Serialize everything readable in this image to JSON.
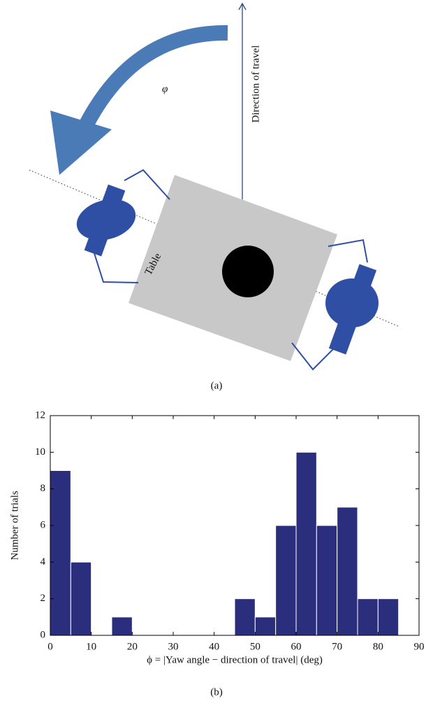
{
  "diagram": {
    "angle_label": "φ",
    "direction_label": "Direction of travel",
    "table_label": "Table",
    "caption": "(a)"
  },
  "chart_data": {
    "type": "histogram",
    "caption": "(b)",
    "x_label": "ϕ = |Yaw angle − direction of travel| (deg)",
    "y_label": "Number of trials",
    "bins": [
      0,
      5,
      10,
      15,
      20,
      25,
      30,
      35,
      40,
      45,
      50,
      55,
      60,
      65,
      70,
      75,
      80,
      85
    ],
    "values": [
      9,
      4,
      0,
      1,
      0,
      0,
      0,
      0,
      0,
      2,
      1,
      6,
      10,
      6,
      7,
      2,
      2
    ],
    "color": "#2b2e7c",
    "xlim": [
      0,
      90
    ],
    "xticks": [
      0,
      10,
      20,
      30,
      40,
      50,
      60,
      70,
      80,
      90
    ],
    "ylim": [
      0,
      12
    ],
    "yticks": [
      0,
      2,
      4,
      6,
      8,
      10,
      12
    ]
  }
}
